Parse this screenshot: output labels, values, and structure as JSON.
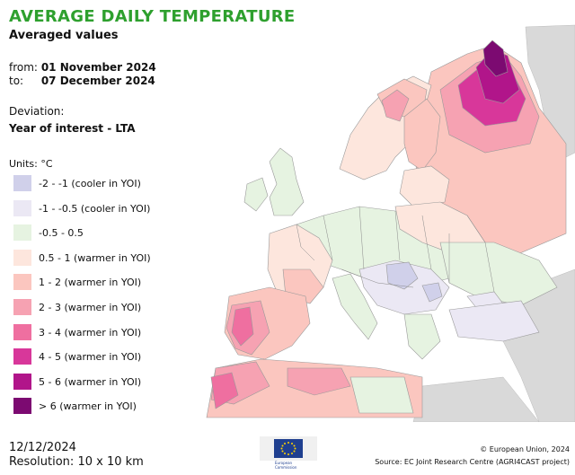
{
  "header": {
    "title": "AVERAGE DAILY TEMPERATURE",
    "subtitle": "Averaged values",
    "from_label": "from:",
    "from_value": "01 November 2024",
    "to_label": "to:",
    "to_value": "07 December 2024",
    "deviation_label": "Deviation:",
    "deviation_value": "Year of interest - LTA"
  },
  "legend": {
    "units": "Units: °C",
    "items": [
      {
        "label": "-2 - -1 (cooler in YOI)",
        "color": "#d0d0ea"
      },
      {
        "label": "-1 - -0.5 (cooler in YOI)",
        "color": "#ebe8f4"
      },
      {
        "label": "-0.5 - 0.5",
        "color": "#e6f3e1"
      },
      {
        "label": "0.5 - 1 (warmer in YOI)",
        "color": "#fde6dd"
      },
      {
        "label": "1 - 2 (warmer in YOI)",
        "color": "#fbc6bf"
      },
      {
        "label": "2 - 3 (warmer in YOI)",
        "color": "#f6a2b2"
      },
      {
        "label": "3 - 4 (warmer in YOI)",
        "color": "#ef6fa0"
      },
      {
        "label": "4 - 5 (warmer in YOI)",
        "color": "#d8379a"
      },
      {
        "label": "5 - 6 (warmer in YOI)",
        "color": "#b1158a"
      },
      {
        "label": "> 6 (warmer in YOI)",
        "color": "#7c0a71"
      }
    ]
  },
  "footer": {
    "date": "12/12/2024",
    "resolution": "Resolution: 10 x 10 km",
    "copyright": "© European Union, 2024",
    "source": "Source: EC Joint Research Centre (AGRI4CAST project)",
    "logo_text_1": "European",
    "logo_text_2": "Commission"
  }
}
